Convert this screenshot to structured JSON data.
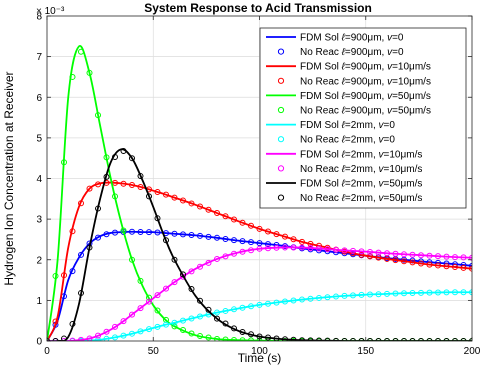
{
  "chart_data": {
    "type": "line",
    "title": "System Response to Acid Transmission",
    "xlabel": "Time (s)",
    "ylabel": "Hydrogen Ion Concentration at Receiver",
    "y_multiplier": "× 10⁻³",
    "xlim": [
      0,
      200
    ],
    "ylim": [
      0,
      8
    ],
    "xticks": [
      0,
      50,
      100,
      150,
      200
    ],
    "yticks": [
      0,
      1,
      2,
      3,
      4,
      5,
      6,
      7,
      8
    ],
    "grid": true,
    "legend_position": "top-right",
    "x": [
      0,
      5,
      10,
      15,
      20,
      25,
      30,
      35,
      40,
      45,
      50,
      55,
      60,
      70,
      80,
      90,
      100,
      110,
      120,
      130,
      140,
      150,
      160,
      170,
      180,
      190,
      200
    ],
    "series": [
      {
        "name": "FDM Sol ℓ=900μm, v=0",
        "color": "#0000ff",
        "style": "line",
        "values": [
          0,
          0.5,
          1.5,
          2.05,
          2.4,
          2.58,
          2.66,
          2.68,
          2.69,
          2.68,
          2.68,
          2.66,
          2.64,
          2.6,
          2.54,
          2.47,
          2.41,
          2.35,
          2.28,
          2.22,
          2.16,
          2.1,
          2.04,
          1.99,
          1.94,
          1.9,
          1.85
        ]
      },
      {
        "name": "No Reac ℓ=900μm, v=0",
        "color": "#0000ff",
        "style": "markers",
        "values": [
          0,
          0.5,
          1.5,
          2.05,
          2.4,
          2.58,
          2.66,
          2.68,
          2.69,
          2.68,
          2.68,
          2.66,
          2.64,
          2.6,
          2.54,
          2.47,
          2.41,
          2.35,
          2.28,
          2.22,
          2.16,
          2.1,
          2.04,
          1.99,
          1.94,
          1.9,
          1.85
        ]
      },
      {
        "name": "FDM Sol ℓ=900μm, v=10μm/s",
        "color": "#ff0000",
        "style": "line",
        "values": [
          0,
          0.6,
          2.3,
          3.3,
          3.75,
          3.88,
          3.9,
          3.88,
          3.84,
          3.78,
          3.7,
          3.62,
          3.53,
          3.35,
          3.15,
          2.95,
          2.76,
          2.6,
          2.44,
          2.32,
          2.2,
          2.1,
          2.02,
          1.95,
          1.88,
          1.83,
          1.78
        ]
      },
      {
        "name": "No Reac ℓ=900μm, v=10μm/s",
        "color": "#ff0000",
        "style": "markers",
        "values": [
          0,
          0.6,
          2.3,
          3.3,
          3.75,
          3.88,
          3.9,
          3.88,
          3.84,
          3.78,
          3.7,
          3.62,
          3.53,
          3.35,
          3.15,
          2.95,
          2.76,
          2.6,
          2.44,
          2.32,
          2.2,
          2.1,
          2.02,
          1.95,
          1.88,
          1.83,
          1.78
        ]
      },
      {
        "name": "FDM Sol ℓ=900μm, v=50μm/s",
        "color": "#00ff00",
        "style": "line",
        "values": [
          0,
          2.0,
          6.0,
          7.25,
          6.6,
          5.3,
          4.0,
          2.9,
          2.0,
          1.35,
          0.88,
          0.56,
          0.36,
          0.14,
          0.05,
          0.02,
          0.01,
          0,
          0,
          0,
          0,
          0,
          0,
          0,
          0,
          0,
          0
        ]
      },
      {
        "name": "No Reac ℓ=900μm, v=50μm/s",
        "color": "#00ff00",
        "style": "markers",
        "values": [
          0,
          2.0,
          6.0,
          7.25,
          6.6,
          5.3,
          4.0,
          2.9,
          2.0,
          1.35,
          0.88,
          0.56,
          0.36,
          0.14,
          0.05,
          0.02,
          0.01,
          0,
          0,
          0,
          0,
          0,
          0,
          0,
          0,
          0,
          0
        ]
      },
      {
        "name": "FDM Sol ℓ=2mm, v=0",
        "color": "#00ffff",
        "style": "line",
        "values": [
          0,
          0,
          0,
          0,
          0.01,
          0.03,
          0.07,
          0.12,
          0.18,
          0.25,
          0.32,
          0.39,
          0.45,
          0.58,
          0.7,
          0.8,
          0.89,
          0.96,
          1.02,
          1.07,
          1.11,
          1.14,
          1.16,
          1.18,
          1.19,
          1.2,
          1.2
        ]
      },
      {
        "name": "No Reac ℓ=2mm, v=0",
        "color": "#00ffff",
        "style": "markers",
        "values": [
          0,
          0,
          0,
          0,
          0.01,
          0.03,
          0.07,
          0.12,
          0.18,
          0.25,
          0.32,
          0.39,
          0.45,
          0.58,
          0.7,
          0.8,
          0.89,
          0.96,
          1.02,
          1.07,
          1.11,
          1.14,
          1.16,
          1.18,
          1.19,
          1.2,
          1.2
        ]
      },
      {
        "name": "FDM Sol ℓ=2mm, v=10μm/s",
        "color": "#ff00ff",
        "style": "line",
        "values": [
          0,
          0,
          0,
          0.02,
          0.06,
          0.15,
          0.28,
          0.45,
          0.65,
          0.85,
          1.05,
          1.25,
          1.45,
          1.78,
          2.02,
          2.18,
          2.27,
          2.3,
          2.3,
          2.27,
          2.23,
          2.2,
          2.16,
          2.13,
          2.1,
          2.07,
          2.05
        ]
      },
      {
        "name": "No Reac ℓ=2mm, v=10μm/s",
        "color": "#ff00ff",
        "style": "markers",
        "values": [
          0,
          0,
          0,
          0.02,
          0.06,
          0.15,
          0.28,
          0.45,
          0.65,
          0.85,
          1.05,
          1.25,
          1.45,
          1.78,
          2.02,
          2.18,
          2.27,
          2.3,
          2.3,
          2.27,
          2.23,
          2.2,
          2.16,
          2.13,
          2.1,
          2.07,
          2.05
        ]
      },
      {
        "name": "FDM Sol ℓ=2mm, v=50μm/s",
        "color": "#000000",
        "style": "line",
        "values": [
          0,
          0,
          0.1,
          0.9,
          2.3,
          3.5,
          4.4,
          4.72,
          4.5,
          3.95,
          3.3,
          2.6,
          2.0,
          1.1,
          0.55,
          0.25,
          0.11,
          0.05,
          0.02,
          0.01,
          0,
          0,
          0,
          0,
          0,
          0,
          0
        ]
      },
      {
        "name": "No Reac ℓ=2mm, v=50μm/s",
        "color": "#000000",
        "style": "markers",
        "values": [
          0,
          0,
          0.1,
          0.9,
          2.3,
          3.5,
          4.4,
          4.72,
          4.5,
          3.95,
          3.3,
          2.6,
          2.0,
          1.1,
          0.55,
          0.25,
          0.11,
          0.05,
          0.02,
          0.01,
          0,
          0,
          0,
          0,
          0,
          0,
          0
        ]
      }
    ],
    "legend": {
      "entries": [
        {
          "prefix": "FDM Sol ",
          "ell": "ℓ",
          "rest": "=900μm, ",
          "vsym": "v",
          "vval": "=0"
        },
        {
          "prefix": "No Reac ",
          "ell": "ℓ",
          "rest": "=900μm, ",
          "vsym": "v",
          "vval": "=0"
        },
        {
          "prefix": "FDM Sol ",
          "ell": "ℓ",
          "rest": "=900μm, ",
          "vsym": "v",
          "vval": "=10μm/s"
        },
        {
          "prefix": "No Reac ",
          "ell": "ℓ",
          "rest": "=900μm, ",
          "vsym": "v",
          "vval": "=10μm/s"
        },
        {
          "prefix": "FDM Sol ",
          "ell": "ℓ",
          "rest": "=900μm, ",
          "vsym": "v",
          "vval": "=50μm/s"
        },
        {
          "prefix": "No Reac ",
          "ell": "ℓ",
          "rest": "=900μm, ",
          "vsym": "v",
          "vval": "=50μm/s"
        },
        {
          "prefix": "FDM Sol ",
          "ell": "ℓ",
          "rest": "=2mm, ",
          "vsym": "v",
          "vval": "=0"
        },
        {
          "prefix": "No Reac ",
          "ell": "ℓ",
          "rest": "=2mm, ",
          "vsym": "v",
          "vval": "=0"
        },
        {
          "prefix": "FDM Sol ",
          "ell": "ℓ",
          "rest": "=2mm, ",
          "vsym": "v",
          "vval": "=10μm/s"
        },
        {
          "prefix": "No Reac ",
          "ell": "ℓ",
          "rest": "=2mm, ",
          "vsym": "v",
          "vval": "=10μm/s"
        },
        {
          "prefix": "FDM Sol ",
          "ell": "ℓ",
          "rest": "=2mm, ",
          "vsym": "v",
          "vval": "=50μm/s"
        },
        {
          "prefix": "No Reac ",
          "ell": "ℓ",
          "rest": "=2mm, ",
          "vsym": "v",
          "vval": "=50μm/s"
        }
      ]
    }
  }
}
